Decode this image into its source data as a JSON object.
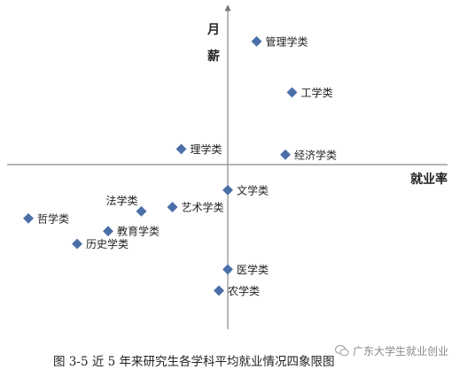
{
  "chart_data": {
    "type": "scatter",
    "title": "",
    "xlabel": "就业率",
    "ylabel": "月薪",
    "xlim": [
      -10,
      10
    ],
    "ylim": [
      -10,
      10
    ],
    "grid": false,
    "series": [
      {
        "color": "#4a6fa8",
        "points": [
          {
            "label": "管理学类",
            "x": 1.3,
            "y": 8.7
          },
          {
            "label": "工学类",
            "x": 2.9,
            "y": 5.1
          },
          {
            "label": "理学类",
            "x": -2.1,
            "y": 1.1
          },
          {
            "label": "经济学类",
            "x": 2.6,
            "y": 0.7
          },
          {
            "label": "文学类",
            "x": 0.0,
            "y": -1.8
          },
          {
            "label": "法学类",
            "x": -3.9,
            "y": -3.3
          },
          {
            "label": "艺术学类",
            "x": -2.5,
            "y": -3.0
          },
          {
            "label": "哲学类",
            "x": -9.0,
            "y": -3.8
          },
          {
            "label": "教育学类",
            "x": -5.4,
            "y": -4.7
          },
          {
            "label": "历史学类",
            "x": -6.8,
            "y": -5.6
          },
          {
            "label": "医学类",
            "x": 0.0,
            "y": -7.4
          },
          {
            "label": "农学类",
            "x": -0.4,
            "y": -8.9
          }
        ]
      }
    ]
  },
  "ylabel_chars": [
    "月",
    "薪"
  ],
  "caption": "图 3-5  近 5 年来研究生各学科平均就业情况四象限图",
  "watermark": "广东大学生就业创业"
}
